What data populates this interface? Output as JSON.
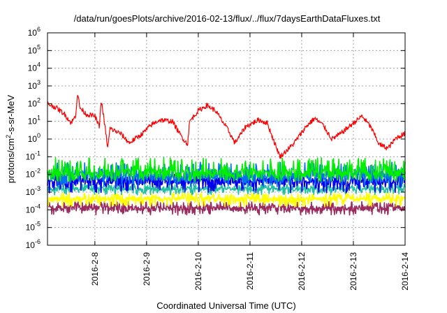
{
  "chart_data": {
    "type": "line",
    "title": "/data/run/goesPlots/archive/2016-02-13/flux/../flux/7daysEarthDataFluxes.txt",
    "xlabel": "Coordinated Universal Time (UTC)",
    "ylabel": {
      "prefix": "protons/cm",
      "sup": "2",
      "suffix": "-s-sr-MeV"
    },
    "yscale": "log",
    "ylim": [
      1e-06,
      1000000.0
    ],
    "y_tick_exponents": [
      -6,
      -5,
      -4,
      -3,
      -2,
      -1,
      0,
      1,
      2,
      3,
      4,
      5,
      6
    ],
    "y_tick_base": "10",
    "xlim": [
      "2016-02-07T02:00",
      "2016-02-14T00:00"
    ],
    "x_ticks": [
      "2016-2-8",
      "2016-2-9",
      "2016-2-10",
      "2016-2-11",
      "2016-2-12",
      "2016-2-13",
      "2016-2-14"
    ],
    "x_tick_dates": [
      "2016-02-08",
      "2016-02-09",
      "2016-02-10",
      "2016-02-11",
      "2016-02-12",
      "2016-02-13",
      "2016-02-14"
    ],
    "grid": true,
    "legend": "none",
    "series": [
      {
        "color": "#ff0000",
        "band": "noisy",
        "points": [
          [
            "2016-02-07T02:00",
            100
          ],
          [
            "2016-02-07T06:00",
            60
          ],
          [
            "2016-02-07T10:00",
            25
          ],
          [
            "2016-02-07T13:00",
            8
          ],
          [
            "2016-02-07T15:00",
            20
          ],
          [
            "2016-02-07T16:00",
            400
          ],
          [
            "2016-02-07T17:00",
            60
          ],
          [
            "2016-02-07T20:00",
            25
          ],
          [
            "2016-02-08T00:00",
            20
          ],
          [
            "2016-02-08T02:00",
            5
          ],
          [
            "2016-02-08T03:00",
            150
          ],
          [
            "2016-02-08T04:00",
            20
          ],
          [
            "2016-02-08T06:00",
            0.3
          ],
          [
            "2016-02-08T07:00",
            4
          ],
          [
            "2016-02-08T12:00",
            2
          ],
          [
            "2016-02-08T16:00",
            0.6
          ],
          [
            "2016-02-08T22:00",
            2
          ],
          [
            "2016-02-09T02:00",
            6
          ],
          [
            "2016-02-09T06:00",
            12
          ],
          [
            "2016-02-09T12:00",
            10
          ],
          [
            "2016-02-09T16:00",
            1.5
          ],
          [
            "2016-02-09T19:00",
            0.5
          ],
          [
            "2016-02-09T20:00",
            10
          ],
          [
            "2016-02-10T00:00",
            40
          ],
          [
            "2016-02-10T04:00",
            80
          ],
          [
            "2016-02-10T08:00",
            40
          ],
          [
            "2016-02-10T14:00",
            3
          ],
          [
            "2016-02-10T17:00",
            0.6
          ],
          [
            "2016-02-10T22:00",
            5
          ],
          [
            "2016-02-11T04:00",
            12
          ],
          [
            "2016-02-11T08:00",
            8
          ],
          [
            "2016-02-11T12:00",
            0.4
          ],
          [
            "2016-02-11T14:00",
            0.1
          ],
          [
            "2016-02-11T20:00",
            0.5
          ],
          [
            "2016-02-12T02:00",
            5
          ],
          [
            "2016-02-12T06:00",
            15
          ],
          [
            "2016-02-12T10:00",
            6
          ],
          [
            "2016-02-12T14:00",
            1
          ],
          [
            "2016-02-12T18:00",
            2
          ],
          [
            "2016-02-13T00:00",
            8
          ],
          [
            "2016-02-13T04:00",
            20
          ],
          [
            "2016-02-13T08:00",
            5
          ],
          [
            "2016-02-13T12:00",
            0.5
          ],
          [
            "2016-02-13T16:00",
            0.3
          ],
          [
            "2016-02-13T20:00",
            1.2
          ],
          [
            "2016-02-14T00:00",
            2
          ]
        ]
      },
      {
        "color": "#00ee00",
        "band": "noisy",
        "center": 0.012,
        "spread": [
          0.004,
          0.09
        ]
      },
      {
        "color": "#0072ee",
        "band": "noisy",
        "center": 0.008,
        "spread": [
          0.002,
          0.05
        ]
      },
      {
        "color": "#0000ee",
        "band": "noisy",
        "center": 0.004,
        "spread": [
          0.0009,
          0.012
        ]
      },
      {
        "color": "#20c0a0",
        "band": "noisy",
        "center": 0.0015,
        "spread": [
          0.0007,
          0.003
        ]
      },
      {
        "color": "#ffff00",
        "band": "noisy",
        "center": 0.0004,
        "spread": [
          0.00015,
          0.0009
        ]
      },
      {
        "color": "#9b2a5e",
        "band": "noisy",
        "center": 0.00012,
        "spread": [
          5e-05,
          0.0003
        ]
      }
    ]
  }
}
